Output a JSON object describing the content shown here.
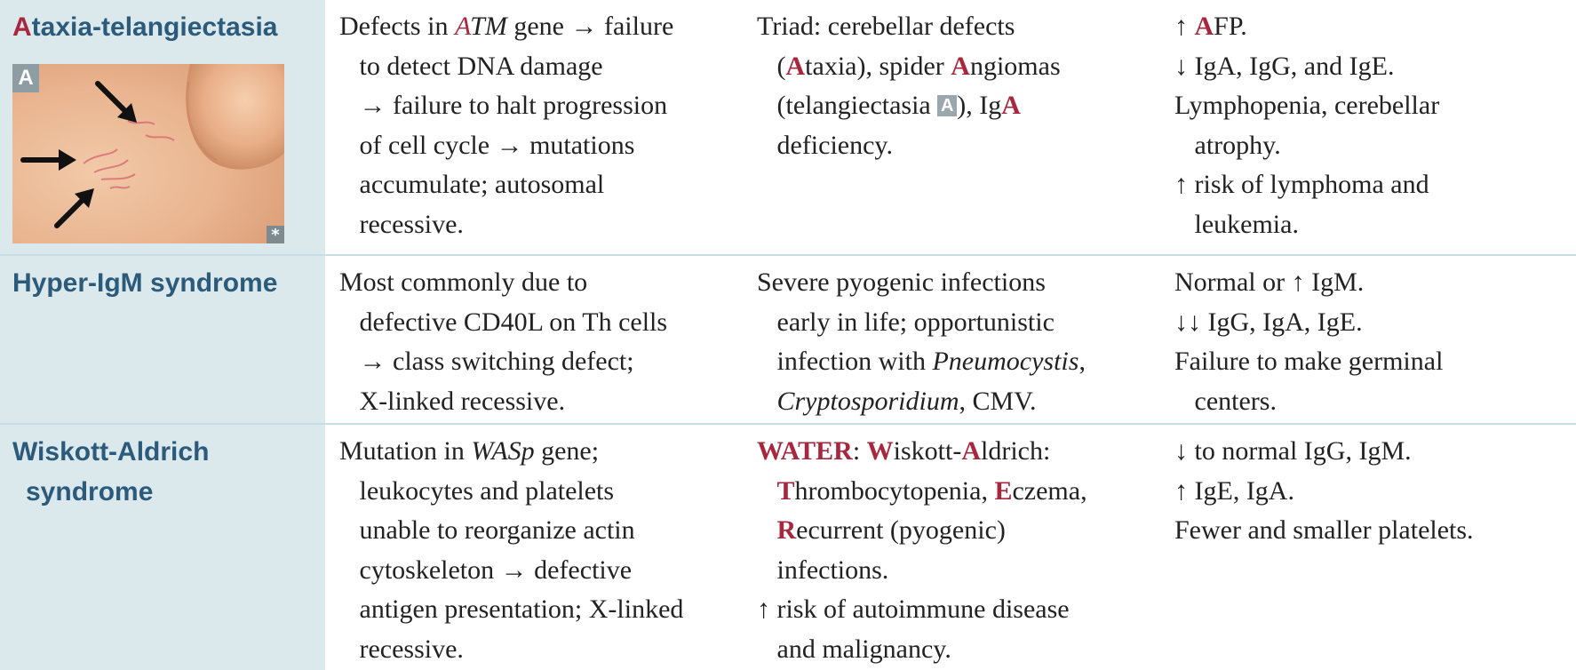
{
  "rows": [
    {
      "name_prefix": "A",
      "name_rest": "taxia-telangiectasia",
      "image": {
        "badge": "A",
        "credit": "*"
      },
      "c2": {
        "l1_a": "Defects in ",
        "l1_b": "A",
        "l1_c": "TM",
        "l1_d": " gene → failure",
        "l2": "to detect DNA damage",
        "l3": "→ failure to halt progression",
        "l4": "of cell cycle → mutations",
        "l5": "accumulate; autosomal",
        "l6": "recessive."
      },
      "c3": {
        "l1": "Triad: cerebellar defects",
        "l2_a": "(",
        "l2_b": "A",
        "l2_c": "taxia), spider ",
        "l2_d": "A",
        "l2_e": "ngiomas",
        "l3_a": "(telangiectasia ",
        "l3_badge": "A",
        "l3_b": "), Ig",
        "l3_c": "A",
        "l4": "deficiency."
      },
      "c4": {
        "l1_a": "↑ ",
        "l1_b": "A",
        "l1_c": "FP.",
        "l2": "↓ IgA, IgG, and IgE.",
        "l3": "Lymphopenia, cerebellar",
        "l4": "atrophy.",
        "l5": "↑ risk of lymphoma and",
        "l6": "leukemia."
      }
    },
    {
      "name": "Hyper-IgM syndrome",
      "c2": {
        "l1": "Most commonly due to",
        "l2": "defective CD40L on Th cells",
        "l3": "→ class switching defect;",
        "l4": "X-linked recessive."
      },
      "c3": {
        "l1": "Severe pyogenic infections",
        "l2": "early in life; opportunistic",
        "l3_a": "infection with ",
        "l3_b": "Pneumocystis",
        "l3_c": ",",
        "l4_a": "Cryptosporidium",
        "l4_b": ", CMV."
      },
      "c4": {
        "l1": "Normal or ↑ IgM.",
        "l2": "↓↓ IgG, IgA, IgE.",
        "l3": "Failure to make germinal",
        "l4": "centers."
      }
    },
    {
      "name_l1": "Wiskott-Aldrich",
      "name_l2": "syndrome",
      "c2": {
        "l1_a": "Mutation in ",
        "l1_b": "WASp",
        "l1_c": " gene;",
        "l2": "leukocytes and platelets",
        "l3": "unable to reorganize actin",
        "l4": "cytoskeleton → defective",
        "l5": "antigen presentation; X-linked",
        "l6": "recessive."
      },
      "c3": {
        "l1_a": "WATER",
        "l1_b": ": ",
        "l1_c": "W",
        "l1_d": "iskott-",
        "l1_e": "A",
        "l1_f": "ldrich:",
        "l2_a": "T",
        "l2_b": "hrombocytopenia, ",
        "l2_c": "E",
        "l2_d": "czema,",
        "l3_a": "R",
        "l3_b": "ecurrent (pyogenic)",
        "l4": "infections.",
        "l5": "↑ risk of autoimmune disease",
        "l6": "and malignancy."
      },
      "c4": {
        "l1": "↓ to normal IgG, IgM.",
        "l2": "↑ IgE, IgA.",
        "l3": "Fewer and smaller platelets."
      }
    }
  ]
}
